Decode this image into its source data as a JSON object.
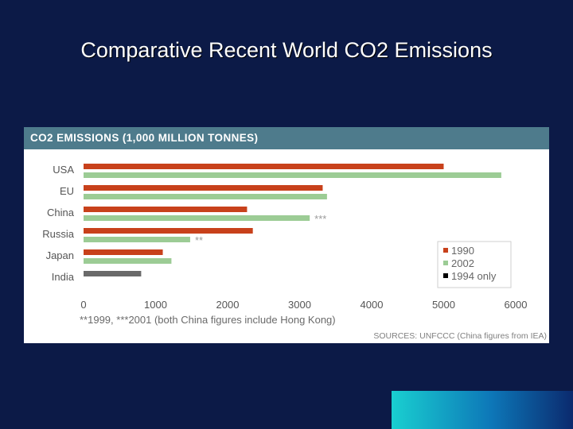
{
  "slide": {
    "title": "Comparative Recent World CO2 Emissions"
  },
  "chart_data": {
    "type": "bar",
    "orientation": "horizontal",
    "title": "CO2 EMISSIONS (1,000 MILLION TONNES)",
    "categories": [
      "USA",
      "EU",
      "China",
      "Russia",
      "Japan",
      "India"
    ],
    "series": [
      {
        "name": "1990",
        "color": "#c8411b",
        "values": [
          5000,
          3320,
          2270,
          2350,
          1100,
          null
        ]
      },
      {
        "name": "2002",
        "color": "#9ccc95",
        "values": [
          5800,
          3380,
          3140,
          1480,
          1220,
          null
        ]
      },
      {
        "name": "1994 only",
        "color": "#6a6a6a",
        "values": [
          null,
          null,
          null,
          null,
          null,
          800
        ]
      }
    ],
    "bar_annotations": [
      {
        "category": "China",
        "series": "2002",
        "text": "***"
      },
      {
        "category": "Russia",
        "series": "2002",
        "text": "**"
      }
    ],
    "legend_swatch_colors": [
      "#c8411b",
      "#9ccc95",
      "#000000"
    ],
    "xlim": [
      0,
      6000
    ],
    "xticks": [
      "0",
      "1000",
      "2000",
      "3000",
      "4000",
      "5000",
      "6000"
    ],
    "xlabel": "",
    "ylabel": "",
    "legend_position": "bottom-right",
    "grid": false,
    "footnote": "**1999, ***2001 (both China figures include Hong Kong)",
    "source": "SOURCES: UNFCCC (China figures from IEA)"
  }
}
